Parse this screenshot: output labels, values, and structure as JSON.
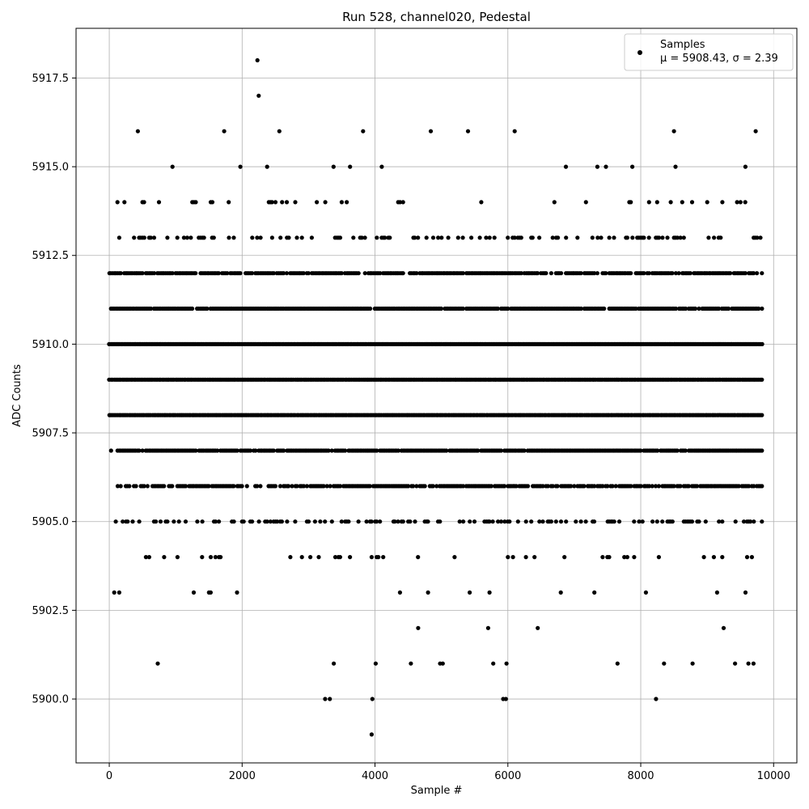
{
  "chart_data": {
    "type": "scatter",
    "title": "Run 528, channel020, Pedestal",
    "xlabel": "Sample #",
    "ylabel": "ADC Counts",
    "xlim": [
      -500,
      10350
    ],
    "ylim": [
      5898.2,
      5918.9
    ],
    "xticks": [
      0,
      2000,
      4000,
      6000,
      8000,
      10000
    ],
    "xtick_labels": [
      "0",
      "2000",
      "4000",
      "6000",
      "8000",
      "10000"
    ],
    "yticks": [
      5900.0,
      5902.5,
      5905.0,
      5907.5,
      5910.0,
      5912.5,
      5915.0,
      5917.5
    ],
    "ytick_labels": [
      "5900.0",
      "5902.5",
      "5905.0",
      "5907.5",
      "5910.0",
      "5912.5",
      "5915.0",
      "5917.5"
    ],
    "grid": true,
    "legend_position": "top-right",
    "series": [
      {
        "name": "Samples",
        "color": "#000000",
        "marker": "circle",
        "x_range": [
          0,
          9840
        ],
        "level_fill": {
          "5899": 0.0005,
          "5900": 0.002,
          "5901": 0.004,
          "5902": 0.009,
          "5903": 0.03,
          "5904": 0.1,
          "5905": 0.35,
          "5906": 0.8,
          "5907": 0.95,
          "5908": 1.0,
          "5909": 1.0,
          "5910": 1.0,
          "5911": 0.95,
          "5912": 0.85,
          "5913": 0.3,
          "5914": 0.08,
          "5915": 0.02,
          "5916": 0.004,
          "5917": 0.0005,
          "5918": 0.0005
        },
        "points": [
          {
            "x": 2230,
            "y": 5918
          },
          {
            "x": 2250,
            "y": 5917
          },
          {
            "x": 430,
            "y": 5916
          },
          {
            "x": 1730,
            "y": 5916
          },
          {
            "x": 2560,
            "y": 5916
          },
          {
            "x": 3820,
            "y": 5916
          },
          {
            "x": 4840,
            "y": 5916
          },
          {
            "x": 5400,
            "y": 5916
          },
          {
            "x": 8500,
            "y": 5916
          },
          {
            "x": 9730,
            "y": 5916
          },
          {
            "x": 3950,
            "y": 5899
          },
          {
            "x": 3250,
            "y": 5900
          },
          {
            "x": 3320,
            "y": 5900
          },
          {
            "x": 3960,
            "y": 5900
          },
          {
            "x": 5930,
            "y": 5900
          },
          {
            "x": 5970,
            "y": 5900
          },
          {
            "x": 8230,
            "y": 5900
          },
          {
            "x": 730,
            "y": 5901
          },
          {
            "x": 3380,
            "y": 5901
          },
          {
            "x": 4010,
            "y": 5901
          },
          {
            "x": 4540,
            "y": 5901
          },
          {
            "x": 4980,
            "y": 5901
          },
          {
            "x": 5020,
            "y": 5901
          },
          {
            "x": 5780,
            "y": 5901
          },
          {
            "x": 5980,
            "y": 5901
          },
          {
            "x": 8350,
            "y": 5901
          },
          {
            "x": 8780,
            "y": 5901
          },
          {
            "x": 9420,
            "y": 5901
          },
          {
            "x": 9620,
            "y": 5901
          }
        ]
      }
    ],
    "legend": {
      "label": "Samples",
      "stats": "μ = 5908.43, σ = 2.39"
    }
  }
}
